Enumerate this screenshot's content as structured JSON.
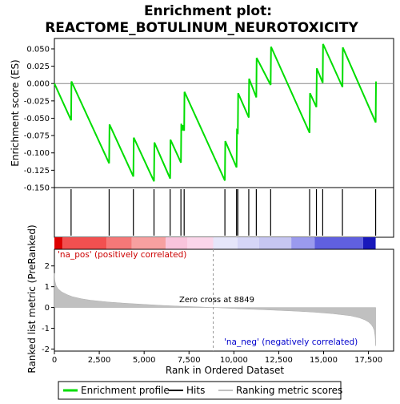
{
  "title_line1": "Enrichment plot:",
  "title_line2": "REACTOME_BOTULINUM_NEUROTOXICITY",
  "chart_data": {
    "type": "line",
    "n_genes": 17900,
    "enrichment_panel": {
      "ylabel": "Enrichment score (ES)",
      "ylim": [
        -0.15,
        0.065
      ],
      "yticks": [
        "0.050",
        "0.025",
        "0.000",
        "-0.025",
        "-0.050",
        "-0.075",
        "-0.100",
        "-0.125",
        "-0.150"
      ],
      "ytick_values": [
        0.05,
        0.025,
        0.0,
        -0.025,
        -0.05,
        -0.075,
        -0.1,
        -0.125,
        -0.15
      ],
      "series": [
        {
          "name": "Enrichment profile",
          "color": "#00dd00",
          "x": [
            0,
            930,
            950,
            3050,
            3070,
            4400,
            4420,
            5550,
            5570,
            6450,
            6470,
            7050,
            7070,
            7120,
            7140,
            7230,
            7250,
            9500,
            9520,
            10150,
            10170,
            10220,
            10240,
            10830,
            10850,
            11250,
            11270,
            12050,
            12070,
            14220,
            14240,
            14600,
            14620,
            14950,
            14970,
            16050,
            16070,
            17900,
            17920
          ],
          "y": [
            0.0,
            -0.053,
            0.003,
            -0.115,
            -0.059,
            -0.134,
            -0.078,
            -0.141,
            -0.085,
            -0.137,
            -0.081,
            -0.114,
            -0.058,
            -0.068,
            -0.06,
            -0.068,
            -0.012,
            -0.14,
            -0.083,
            -0.121,
            -0.068,
            -0.07,
            -0.014,
            -0.049,
            0.007,
            -0.02,
            0.037,
            -0.002,
            0.053,
            -0.071,
            -0.014,
            -0.034,
            0.022,
            0.001,
            0.057,
            -0.005,
            0.052,
            -0.056,
            0.003
          ]
        }
      ]
    },
    "hits": {
      "name": "Hits",
      "x": [
        930,
        3050,
        4400,
        5550,
        6450,
        7050,
        7230,
        9500,
        10150,
        10220,
        10830,
        11250,
        12050,
        14220,
        14600,
        14950,
        16050,
        17900
      ]
    },
    "ranking_panel": {
      "name": "Ranking metric scores",
      "ylabel": "Ranked list metric (PreRanked)",
      "ylim": [
        -2.1,
        2.8
      ],
      "yticks": [
        "2",
        "1",
        "0",
        "-1",
        "-2"
      ],
      "ytick_values": [
        2,
        1,
        0,
        -1,
        -2
      ],
      "curve_x": [
        0,
        20,
        50,
        100,
        200,
        400,
        700,
        1000,
        1500,
        2000,
        3000,
        4000,
        5000,
        6000,
        7000,
        8000,
        8849,
        9500,
        10500,
        11500,
        12500,
        13500,
        14500,
        15500,
        16500,
        17000,
        17300,
        17500,
        17650,
        17750,
        17820,
        17870,
        17900
      ],
      "curve_y": [
        1.65,
        1.35,
        1.2,
        1.05,
        0.9,
        0.75,
        0.62,
        0.52,
        0.42,
        0.35,
        0.26,
        0.2,
        0.15,
        0.1,
        0.06,
        0.03,
        0.0,
        -0.03,
        -0.07,
        -0.1,
        -0.14,
        -0.18,
        -0.23,
        -0.3,
        -0.4,
        -0.5,
        -0.6,
        -0.7,
        -0.82,
        -0.95,
        -1.1,
        -1.4,
        -1.85
      ],
      "zero_cross_label": "Zero cross at 8849",
      "zero_cross_x": 8849,
      "pos_label": "'na_pos' (positively correlated)",
      "neg_label": "'na_neg' (negatively correlated)"
    },
    "x_axis": {
      "xlabel": "Rank in Ordered Dataset",
      "xticks": [
        "0",
        "2,500",
        "5,000",
        "7,500",
        "10,000",
        "12,500",
        "15,000",
        "17,500"
      ],
      "xtick_values": [
        0,
        2500,
        5000,
        7500,
        10000,
        12500,
        15000,
        17500
      ],
      "xlim": [
        0,
        18900
      ]
    },
    "colorbar_segments": [
      {
        "start": 0,
        "end": 450,
        "color": "#dd0000"
      },
      {
        "start": 450,
        "end": 2900,
        "color": "#f25050"
      },
      {
        "start": 2900,
        "end": 4300,
        "color": "#f57878"
      },
      {
        "start": 4300,
        "end": 6200,
        "color": "#f7a0a0"
      },
      {
        "start": 6200,
        "end": 7400,
        "color": "#f9c4dc"
      },
      {
        "start": 7400,
        "end": 8850,
        "color": "#fbd6ea"
      },
      {
        "start": 8850,
        "end": 10200,
        "color": "#e6e6fa"
      },
      {
        "start": 10200,
        "end": 11400,
        "color": "#d6d6f7"
      },
      {
        "start": 11400,
        "end": 13200,
        "color": "#c6c6f2"
      },
      {
        "start": 13200,
        "end": 14500,
        "color": "#9a9aee"
      },
      {
        "start": 14500,
        "end": 17200,
        "color": "#6060e0"
      },
      {
        "start": 17200,
        "end": 17900,
        "color": "#1818bb"
      }
    ]
  },
  "legend": {
    "items": [
      {
        "label": "Enrichment profile",
        "color": "#00dd00"
      },
      {
        "label": "Hits",
        "color": "#000000"
      },
      {
        "label": "Ranking metric scores",
        "color": "#c0c0c0"
      }
    ]
  }
}
